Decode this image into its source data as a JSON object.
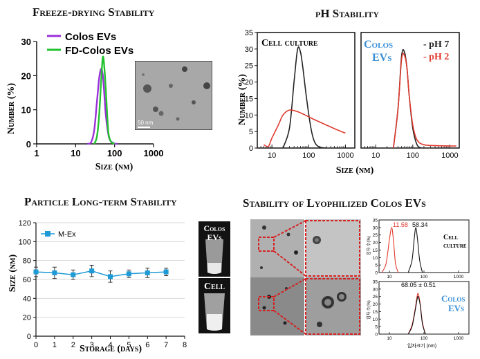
{
  "titles": {
    "freeze": "Freeze-drying Stability",
    "ph": "pH Stability",
    "longterm": "Particle Long-term Stability",
    "lyo": "Stability of Lyophilized Colos EVs"
  },
  "freeze": {
    "legend": [
      "Colos EVs",
      "FD-Colos EVs"
    ],
    "colors": {
      "colos": "#9b30d9",
      "fd": "#22c22e"
    },
    "scale_bar": "50 nm"
  },
  "ph": {
    "left_label": "Cell culture",
    "right_label_1": "Colos",
    "right_label_2": "EVs",
    "legend": [
      "- pH 7",
      "- pH 2"
    ],
    "colors": {
      "ph7": "#222222",
      "ph2": "#e03a2e",
      "colos": "#3a8fd6"
    }
  },
  "longterm": {
    "legend": "M-Ex",
    "color": "#1e9ad6",
    "vial_labels": {
      "top_1": "Colos",
      "top_2": "EVs",
      "bottom": "Cell"
    }
  },
  "lyo": {
    "top_peak_labels": [
      "11.58",
      "58.34"
    ],
    "top_label_1": "Cell",
    "top_label_2": "culture",
    "bottom_peak_label": "68.05 ± 0.51",
    "bottom_label_1": "Colos",
    "bottom_label_2": "EVs",
    "ylabel": "입자 수(%)",
    "xlabel": "입자크기 (nm)",
    "yticks_top": [
      "35",
      "30",
      "25",
      "20",
      "15",
      "10",
      "5",
      "0"
    ],
    "yticks_bottom": [
      "35",
      "30",
      "25",
      "20",
      "15",
      "10",
      "5",
      "0"
    ],
    "xticks": [
      "10",
      "100",
      "1000"
    ]
  },
  "chart_data": [
    {
      "type": "line",
      "title": "Freeze-drying Stability",
      "xlabel": "Size (nm)",
      "ylabel": "Number (%)",
      "x_scale": "log",
      "xlim": [
        1,
        1000
      ],
      "ylim": [
        0,
        30
      ],
      "xticks": [
        "1",
        "10",
        "100",
        "1000"
      ],
      "yticks": [
        "0",
        "10",
        "20",
        "30"
      ],
      "series": [
        {
          "name": "Colos EVs",
          "x": [
            20,
            25,
            30,
            35,
            40,
            45,
            50,
            55,
            60,
            70,
            80,
            100,
            120
          ],
          "y": [
            0,
            0.5,
            4,
            12,
            19,
            22,
            20,
            14,
            8,
            2.5,
            0.8,
            0.1,
            0
          ]
        },
        {
          "name": "FD-Colos EVs",
          "x": [
            30,
            35,
            40,
            45,
            50,
            55,
            60,
            65,
            70,
            80,
            100
          ],
          "y": [
            0,
            2,
            8,
            18,
            25.5,
            22,
            15,
            8,
            3,
            0.7,
            0
          ]
        }
      ]
    },
    {
      "type": "line",
      "title": "pH Stability",
      "xlabel": "Size (nm)",
      "ylabel": "Number (%)",
      "x_scale": "log",
      "ylim": [
        0,
        35
      ],
      "yticks": [
        "0",
        "5",
        "10",
        "15",
        "20",
        "25",
        "30",
        "35"
      ],
      "xticks": [
        "10",
        "100",
        "1000"
      ],
      "panels": [
        {
          "label": "Cell culture",
          "series": [
            {
              "name": "pH 7",
              "x": [
                20,
                30,
                40,
                50,
                60,
                70,
                90,
                120,
                150,
                200,
                300
              ],
              "y": [
                0,
                6,
                20,
                30,
                29,
                24,
                14,
                5,
                1.5,
                0.3,
                0
              ]
            },
            {
              "name": "pH 2",
              "x": [
                6,
                8,
                10,
                15,
                20,
                30,
                50,
                80,
                150,
                300,
                600,
                1000
              ],
              "y": [
                1,
                0.5,
                3,
                7,
                10,
                11.5,
                11,
                10,
                8.5,
                7,
                5.5,
                4.5
              ]
            }
          ]
        },
        {
          "label": "Colos EVs",
          "series": [
            {
              "name": "pH 7",
              "x": [
                30,
                40,
                50,
                60,
                70,
                80,
                100,
                130,
                170
              ],
              "y": [
                0,
                12,
                28,
                29,
                24,
                16,
                6,
                1,
                0
              ]
            },
            {
              "name": "pH 2",
              "x": [
                30,
                40,
                50,
                60,
                70,
                80,
                100,
                130,
                200,
                500,
                1500
              ],
              "y": [
                0,
                12,
                27,
                28,
                24,
                16,
                7,
                2.5,
                1,
                0.7,
                0.6
              ]
            }
          ]
        }
      ]
    },
    {
      "type": "line",
      "title": "Particle Long-term Stability",
      "xlabel": "Storage (days)",
      "ylabel": "Size (nm)",
      "xlim": [
        0,
        8
      ],
      "ylim": [
        0,
        120
      ],
      "xticks": [
        "0",
        "1",
        "2",
        "3",
        "4",
        "5",
        "6",
        "7",
        "8"
      ],
      "yticks": [
        "0",
        "20",
        "40",
        "60",
        "80",
        "100",
        "120"
      ],
      "grid": true,
      "legend": "top-left",
      "series": [
        {
          "name": "M-Ex",
          "x": [
            0,
            1,
            2,
            3,
            4,
            5,
            6,
            7
          ],
          "y": [
            68,
            67,
            65,
            69,
            63,
            66,
            67,
            68
          ],
          "error": [
            5,
            6,
            5,
            6,
            6,
            4,
            5,
            4
          ]
        }
      ]
    }
  ]
}
